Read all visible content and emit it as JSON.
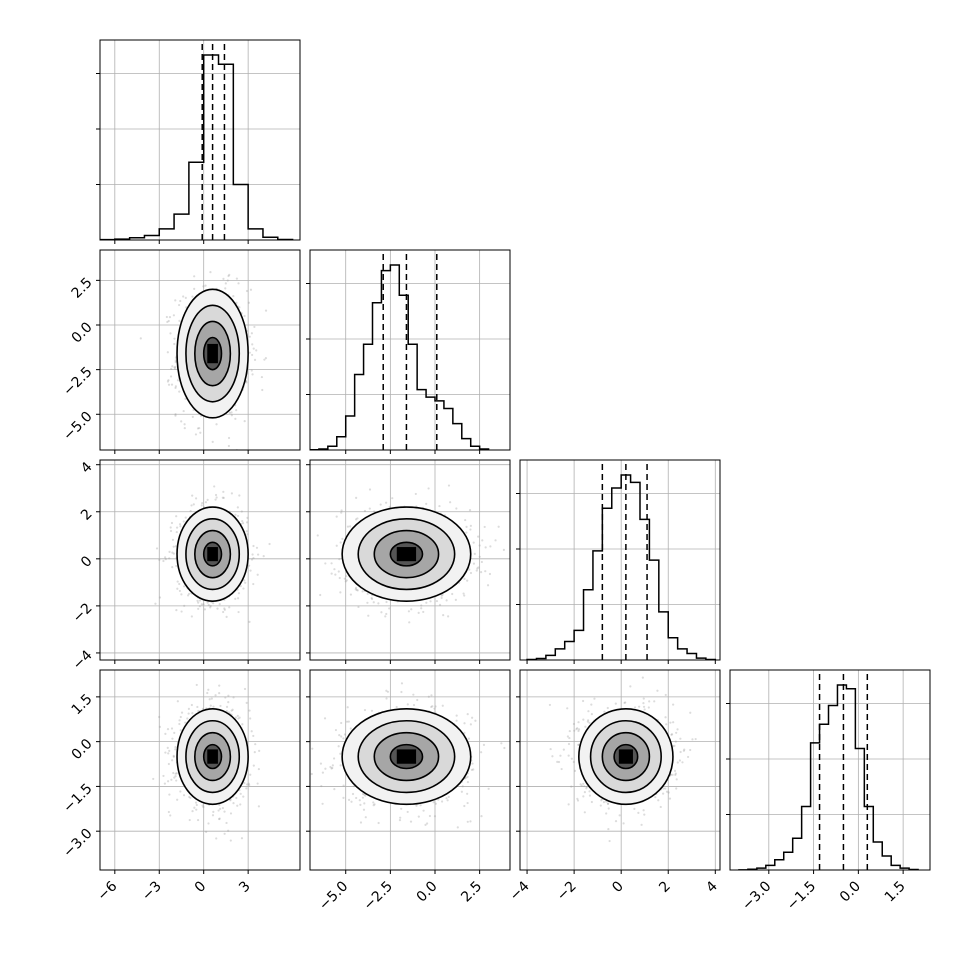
{
  "chart_data": {
    "type": "corner",
    "parameters": 4,
    "grid": true,
    "colors": {
      "line": "#000000",
      "grid": "#b0b0b0",
      "points": "#9a9a9a"
    },
    "ranges": [
      [
        -7,
        6.5
      ],
      [
        -7,
        4.2
      ],
      [
        -4.3,
        4.2
      ],
      [
        -4.3,
        2.4
      ]
    ],
    "ticks": [
      {
        "values": [
          -6,
          -3,
          0,
          3
        ],
        "labels": [
          "−6",
          "−3",
          "0",
          "3"
        ]
      },
      {
        "values": [
          -5,
          -2.5,
          0,
          2.5
        ],
        "labels": [
          "−5.0",
          "−2.5",
          "0.0",
          "2.5"
        ]
      },
      {
        "values": [
          -4,
          -2,
          0,
          2,
          4
        ],
        "labels": [
          "−4",
          "−2",
          "0",
          "2",
          "4"
        ]
      },
      {
        "values": [
          -3,
          -1.5,
          0,
          1.5
        ],
        "labels": [
          "−3.0",
          "−1.5",
          "0.0",
          "1.5"
        ]
      }
    ],
    "quantiles": [
      [
        -0.1,
        0.6,
        1.4
      ],
      [
        -2.9,
        -1.6,
        0.1
      ],
      [
        -0.8,
        0.2,
        1.1
      ],
      [
        -1.3,
        -0.5,
        0.3
      ]
    ],
    "histograms": [
      {
        "bins": [
          -7,
          -6,
          -5,
          -4,
          -3,
          -2,
          -1,
          0,
          1,
          2,
          3,
          4,
          5,
          6
        ],
        "counts": [
          2,
          5,
          12,
          24,
          60,
          140,
          420,
          1000,
          950,
          300,
          60,
          15,
          3
        ]
      },
      {
        "bins": [
          -7,
          -6.5,
          -6,
          -5.5,
          -5,
          -4.5,
          -4,
          -3.5,
          -3,
          -2.5,
          -2,
          -1.5,
          -1,
          -0.5,
          0,
          0.5,
          1,
          1.5,
          2,
          2.5,
          3
        ],
        "counts": [
          1,
          5,
          20,
          70,
          180,
          400,
          560,
          780,
          950,
          980,
          820,
          560,
          320,
          280,
          260,
          220,
          140,
          60,
          20,
          5
        ]
      },
      {
        "bins": [
          -4,
          -3.6,
          -3.2,
          -2.8,
          -2.4,
          -2,
          -1.6,
          -1.2,
          -0.8,
          -0.4,
          0,
          0.4,
          0.8,
          1.2,
          1.6,
          2,
          2.4,
          2.8,
          3.2,
          3.6,
          4
        ],
        "counts": [
          3,
          8,
          25,
          60,
          100,
          160,
          380,
          590,
          820,
          930,
          1000,
          960,
          760,
          540,
          260,
          120,
          60,
          35,
          10,
          3
        ]
      },
      {
        "bins": [
          -4,
          -3.7,
          -3.4,
          -3.1,
          -2.8,
          -2.5,
          -2.2,
          -1.9,
          -1.6,
          -1.3,
          -1,
          -0.7,
          -0.4,
          -0.1,
          0.2,
          0.5,
          0.8,
          1.1,
          1.4,
          1.7,
          2
        ],
        "counts": [
          1,
          4,
          10,
          25,
          55,
          95,
          170,
          340,
          680,
          780,
          880,
          990,
          970,
          650,
          340,
          150,
          75,
          25,
          10,
          3
        ]
      }
    ],
    "scatter_means": [
      {
        "pair": [
          1,
          0
        ],
        "mx": 0.6,
        "my": -1.6,
        "sx": 1.2,
        "sy": 1.8
      },
      {
        "pair": [
          2,
          0
        ],
        "mx": 0.6,
        "my": 0.2,
        "sx": 1.2,
        "sy": 1.0
      },
      {
        "pair": [
          2,
          1
        ],
        "mx": -1.6,
        "my": 0.2,
        "sx": 1.8,
        "sy": 1.0
      },
      {
        "pair": [
          3,
          0
        ],
        "mx": 0.6,
        "my": -0.5,
        "sx": 1.2,
        "sy": 0.8
      },
      {
        "pair": [
          3,
          1
        ],
        "mx": -1.6,
        "my": -0.5,
        "sx": 1.8,
        "sy": 0.8
      },
      {
        "pair": [
          3,
          2
        ],
        "mx": 0.2,
        "my": -0.5,
        "sx": 1.0,
        "sy": 0.8
      }
    ]
  }
}
